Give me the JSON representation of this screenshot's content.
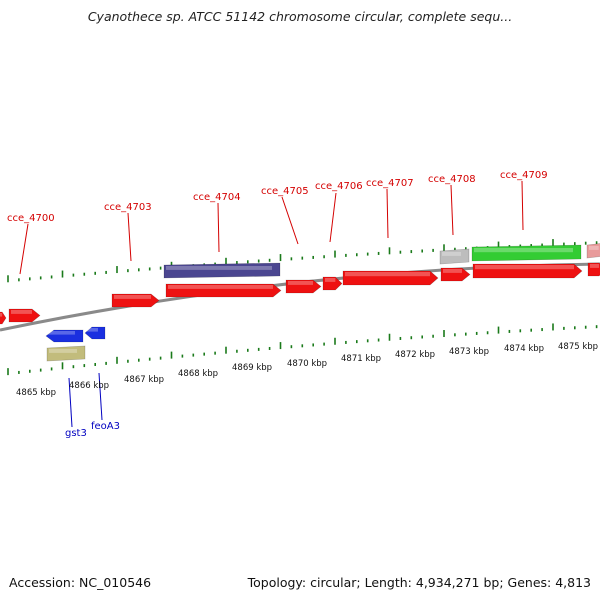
{
  "title": "Cyanothece sp. ATCC 51142 chromosome circular, complete sequ...",
  "footer": {
    "accession": "Accession: NC_010546",
    "topology": "Topology: circular; Length: 4,934,271 bp; Genes: 4,813"
  },
  "colors": {
    "gene": "#ee1111",
    "purple": "#4b4690",
    "gray": "#bdbdbd",
    "green": "#33cc33",
    "pink": "#e89a9a",
    "blue": "#1a2fe0",
    "olive": "#c2bc7c",
    "tick": "#1a7a1a",
    "label_red": "#d40000",
    "label_blue": "#0000c0",
    "backbone": "#8a8a8a"
  },
  "kbp_labels": [
    "4865 kbp",
    "4866 kbp",
    "4867 kbp",
    "4868 kbp",
    "4869 kbp",
    "4870 kbp",
    "4871 kbp",
    "4872 kbp",
    "4873 kbp",
    "4874 kbp",
    "4875 kbp"
  ],
  "forward_gene_labels": [
    "cce_4700",
    "cce_4703",
    "cce_4704",
    "cce_4705",
    "cce_4706",
    "cce_4707",
    "cce_4708",
    "cce_4709"
  ],
  "reverse_gene_labels": [
    "gst3",
    "feoA3"
  ]
}
